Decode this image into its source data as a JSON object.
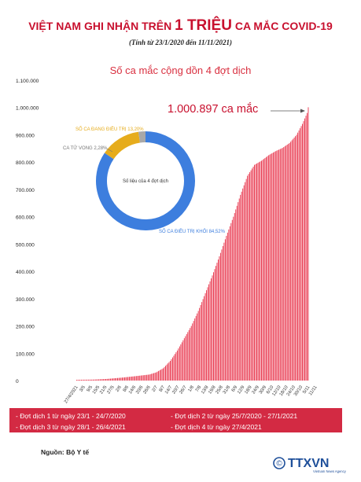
{
  "header": {
    "title_part1": "VIỆT NAM GHI NHẬN TRÊN ",
    "title_big": "1 TRIỆU",
    "title_part2": " CA MẮC COVID-19",
    "subtitle": "(Tính từ 23/1/2020 đến 11/11/2021)"
  },
  "colors": {
    "accent": "#c8102e",
    "bar": "#e8344b",
    "donut_recovered": "#3d7ede",
    "donut_treating": "#e6ac1c",
    "donut_deaths": "#a8a8a8",
    "legend_bg": "#d32a43"
  },
  "chart_data": {
    "type": "bar",
    "title": "Số ca mắc cộng dồn 4 đợt dịch",
    "ylim": [
      0,
      1100000
    ],
    "yticks": [
      0,
      100000,
      200000,
      300000,
      400000,
      500000,
      600000,
      700000,
      800000,
      900000,
      1000000,
      1100000
    ],
    "ytick_labels": [
      "0",
      "100.000",
      "200.000",
      "300.000",
      "400.000",
      "500.000",
      "600.000",
      "700.000",
      "800.000",
      "900.000",
      "1.000.000",
      "1.100.000"
    ],
    "xtick_labels": [
      "27/4/2021",
      "3/5",
      "9/5",
      "15/5",
      "21/5",
      "27/5",
      "2/6",
      "8/6",
      "14/6",
      "20/6",
      "26/6",
      "2/7",
      "8/7",
      "14/7",
      "20/7",
      "26/7",
      "1/8",
      "7/8",
      "13/8",
      "19/8",
      "25/8",
      "31/8",
      "6/9",
      "12/9",
      "18/9",
      "24/9",
      "30/9",
      "6/10",
      "12/10",
      "18/10",
      "24/10",
      "30/10",
      "5/11",
      "11/11"
    ],
    "x_start": "27/4/2021",
    "x_end": "11/11/2021",
    "keyframes": [
      [
        0,
        2850
      ],
      [
        14,
        3500
      ],
      [
        26,
        6000
      ],
      [
        38,
        10500
      ],
      [
        50,
        16000
      ],
      [
        62,
        22000
      ],
      [
        68,
        30000
      ],
      [
        74,
        45000
      ],
      [
        80,
        72000
      ],
      [
        86,
        110000
      ],
      [
        92,
        155000
      ],
      [
        98,
        200000
      ],
      [
        104,
        255000
      ],
      [
        110,
        320000
      ],
      [
        116,
        385000
      ],
      [
        122,
        455000
      ],
      [
        128,
        530000
      ],
      [
        134,
        600000
      ],
      [
        140,
        680000
      ],
      [
        146,
        750000
      ],
      [
        152,
        790000
      ],
      [
        158,
        805000
      ],
      [
        164,
        825000
      ],
      [
        170,
        840000
      ],
      [
        176,
        852000
      ],
      [
        182,
        870000
      ],
      [
        188,
        900000
      ],
      [
        193,
        940000
      ],
      [
        198,
        990000
      ]
    ],
    "annotation": "1.000.897 ca mắc",
    "final_value": 1000897,
    "donut": {
      "center_label": "Số liệu của 4 đợt dịch",
      "slices": [
        {
          "label": "SỐ CA ĐIỀU TRỊ KHỎI 84,52%",
          "value": 84.52,
          "color": "#3d7ede"
        },
        {
          "label": "CA TỬ VONG 2,28%",
          "value": 2.28,
          "color": "#a8a8a8"
        },
        {
          "label": "SỐ CA ĐANG ĐIỀU TRỊ 13,20%",
          "value": 13.2,
          "color": "#e6ac1c"
        }
      ]
    }
  },
  "legend": {
    "wave1": "- Đợt dịch 1 từ ngày 23/1 - 24/7/2020",
    "wave2": "- Đợt dịch 2 từ ngày 25/7/2020 - 27/1/2021",
    "wave3": "- Đợt dịch 3 từ ngày 28/1 - 26/4/2021",
    "wave4": "- Đợt dịch 4 từ ngày 27/4/2021"
  },
  "footer": {
    "source": "Nguồn: Bộ Y tế",
    "logo_text": "TTXVN",
    "logo_subtext": "Vietnam News Agency"
  }
}
